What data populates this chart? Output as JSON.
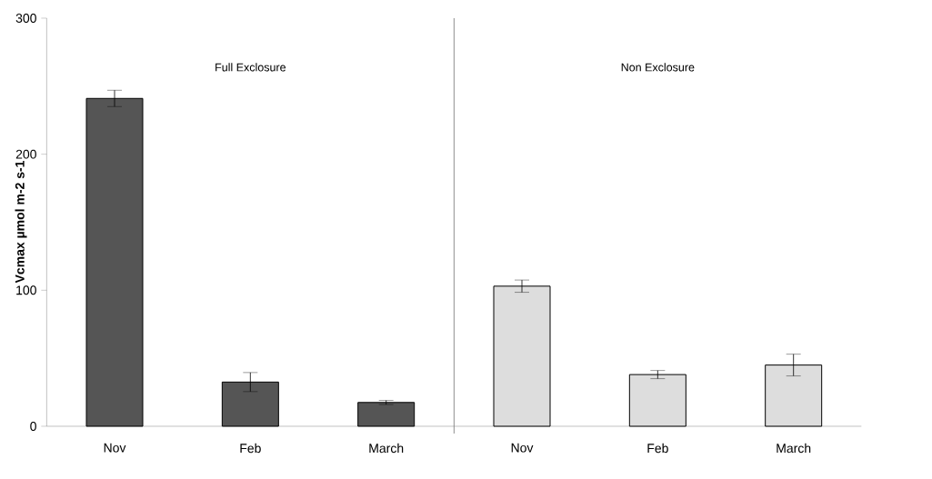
{
  "chart_data": {
    "type": "bar",
    "ylabel": "Vcmax  µmol m-2 s-1",
    "categories": [
      "Nov",
      "Feb",
      "March",
      "Nov",
      "Feb",
      "March"
    ],
    "values": [
      241,
      32.5,
      17.5,
      103,
      38,
      45
    ],
    "errors": [
      6,
      7,
      1.5,
      4.5,
      3,
      8
    ],
    "colors": [
      "#555555",
      "#555555",
      "#555555",
      "#dddddd",
      "#dddddd",
      "#dddddd"
    ],
    "ylim": [
      0,
      300
    ],
    "yticks": [
      0,
      100,
      200,
      300
    ],
    "annotations": [
      "Full Exclosure",
      "Non Exclosure"
    ]
  }
}
